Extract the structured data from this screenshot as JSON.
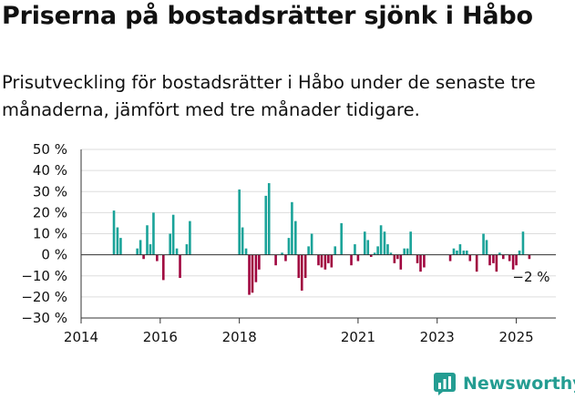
{
  "title": "Priserna på bostadsrätter sjönk i Håbo",
  "subtitle": "Prisutveckling för bostadsrätter i Håbo under de senaste tre månaderna, jämfört med tre månader tidigare.",
  "brand": {
    "name": "Newsworthy",
    "icon": "bar-chart-logo-icon"
  },
  "colors": {
    "positive": "#1aa399",
    "negative": "#a0063f",
    "text": "#111111",
    "brand": "#249d92",
    "grid": "#dddddd"
  },
  "chart_data": {
    "type": "bar",
    "x_axis": {
      "min": 2014.0,
      "max": 2026.0,
      "ticks": [
        2014,
        2016,
        2018,
        2021,
        2023,
        2025
      ],
      "tick_labels": [
        "2014",
        "2016",
        "2018",
        "2021",
        "2023",
        "2025"
      ]
    },
    "y_axis": {
      "min": -30,
      "max": 50,
      "ticks": [
        50,
        40,
        30,
        20,
        10,
        0,
        -10,
        -20,
        -30
      ],
      "tick_labels": [
        "50 %",
        "40 %",
        "30 %",
        "20 %",
        "10 %",
        "0 %",
        "−10 %",
        "−20 %",
        "−30 %"
      ]
    },
    "grid": true,
    "annotation": {
      "text": "−2 %",
      "x": 2025.33,
      "y": -2
    },
    "points": [
      [
        2014.83,
        21
      ],
      [
        2014.92,
        13
      ],
      [
        2015.0,
        8
      ],
      [
        2015.42,
        3
      ],
      [
        2015.5,
        7
      ],
      [
        2015.58,
        -2
      ],
      [
        2015.67,
        14
      ],
      [
        2015.75,
        5
      ],
      [
        2015.83,
        20
      ],
      [
        2015.92,
        -3
      ],
      [
        2016.08,
        -12
      ],
      [
        2016.25,
        10
      ],
      [
        2016.33,
        19
      ],
      [
        2016.42,
        3
      ],
      [
        2016.5,
        -11
      ],
      [
        2016.67,
        5
      ],
      [
        2016.75,
        16
      ],
      [
        2018.0,
        31
      ],
      [
        2018.08,
        13
      ],
      [
        2018.17,
        3
      ],
      [
        2018.25,
        -19
      ],
      [
        2018.33,
        -18
      ],
      [
        2018.42,
        -13
      ],
      [
        2018.5,
        -7
      ],
      [
        2018.67,
        28
      ],
      [
        2018.75,
        34
      ],
      [
        2018.92,
        -5
      ],
      [
        2019.08,
        1
      ],
      [
        2019.17,
        -3
      ],
      [
        2019.25,
        8
      ],
      [
        2019.33,
        25
      ],
      [
        2019.42,
        16
      ],
      [
        2019.5,
        -11
      ],
      [
        2019.58,
        -17
      ],
      [
        2019.67,
        -11
      ],
      [
        2019.75,
        4
      ],
      [
        2019.83,
        10
      ],
      [
        2020.0,
        -5
      ],
      [
        2020.08,
        -6
      ],
      [
        2020.17,
        -7
      ],
      [
        2020.25,
        -4
      ],
      [
        2020.33,
        -6
      ],
      [
        2020.42,
        4
      ],
      [
        2020.58,
        15
      ],
      [
        2020.83,
        -5
      ],
      [
        2020.92,
        5
      ],
      [
        2021.0,
        -3
      ],
      [
        2021.17,
        11
      ],
      [
        2021.25,
        7
      ],
      [
        2021.33,
        -1
      ],
      [
        2021.42,
        1
      ],
      [
        2021.5,
        4
      ],
      [
        2021.58,
        14
      ],
      [
        2021.67,
        11
      ],
      [
        2021.75,
        5
      ],
      [
        2021.83,
        1
      ],
      [
        2021.92,
        -4
      ],
      [
        2022.0,
        -2
      ],
      [
        2022.08,
        -7
      ],
      [
        2022.17,
        3
      ],
      [
        2022.25,
        3
      ],
      [
        2022.33,
        11
      ],
      [
        2022.5,
        -4
      ],
      [
        2022.58,
        -8
      ],
      [
        2022.67,
        -6
      ],
      [
        2023.33,
        -3
      ],
      [
        2023.42,
        3
      ],
      [
        2023.5,
        2
      ],
      [
        2023.58,
        5
      ],
      [
        2023.67,
        2
      ],
      [
        2023.75,
        2
      ],
      [
        2023.83,
        -3
      ],
      [
        2024.0,
        -8
      ],
      [
        2024.17,
        10
      ],
      [
        2024.25,
        7
      ],
      [
        2024.33,
        -5
      ],
      [
        2024.42,
        -4
      ],
      [
        2024.5,
        -8
      ],
      [
        2024.58,
        1
      ],
      [
        2024.67,
        -2
      ],
      [
        2024.83,
        -3
      ],
      [
        2024.92,
        -7
      ],
      [
        2025.0,
        -5
      ],
      [
        2025.08,
        2
      ],
      [
        2025.17,
        11
      ],
      [
        2025.33,
        -2
      ]
    ]
  }
}
